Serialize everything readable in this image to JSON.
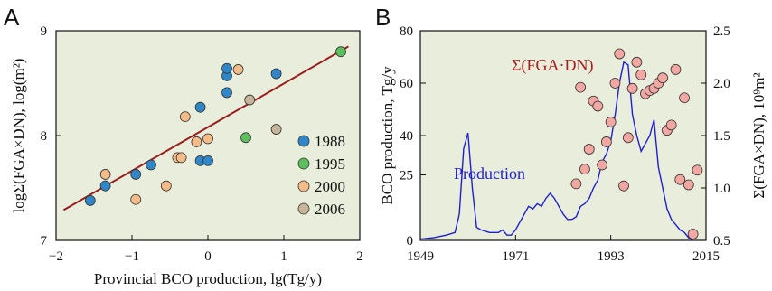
{
  "chart_data": [
    {
      "panel": "A",
      "type": "scatter",
      "xlabel": "Provincial BCO production, lg(Tg/y)",
      "ylabel": "logΣ(FGA×DN), log(m²)",
      "xlim": [
        -2,
        2
      ],
      "ylim": [
        7,
        9
      ],
      "xticks": [
        -2,
        -1,
        0,
        1,
        2
      ],
      "yticks": [
        7,
        8,
        9
      ],
      "xtick_labels": [
        "−2",
        "−1",
        "0",
        "1",
        "2"
      ],
      "ytick_labels": [
        "7",
        "8",
        "9"
      ],
      "background": "#e8eedb",
      "legend_position": "bottom-right",
      "fit_line": {
        "x": [
          -1.9,
          1.85
        ],
        "y": [
          7.29,
          8.85
        ],
        "color": "#9b1c1c"
      },
      "series": [
        {
          "name": "1988",
          "color": "#2f86c8",
          "points": [
            [
              -1.55,
              7.38
            ],
            [
              -1.35,
              7.52
            ],
            [
              -0.95,
              7.63
            ],
            [
              -0.75,
              7.72
            ],
            [
              -0.1,
              7.76
            ],
            [
              0.0,
              7.76
            ],
            [
              -0.1,
              8.27
            ],
            [
              0.25,
              8.41
            ],
            [
              0.25,
              8.57
            ],
            [
              0.25,
              8.64
            ],
            [
              0.9,
              8.59
            ]
          ]
        },
        {
          "name": "1995",
          "color": "#5cbf5c",
          "points": [
            [
              0.5,
              7.98
            ],
            [
              1.75,
              8.8
            ]
          ]
        },
        {
          "name": "2000",
          "color": "#f5bb88",
          "points": [
            [
              -1.35,
              7.63
            ],
            [
              -0.95,
              7.39
            ],
            [
              -0.55,
              7.52
            ],
            [
              -0.4,
              7.79
            ],
            [
              -0.35,
              7.79
            ],
            [
              -0.15,
              7.94
            ],
            [
              0.0,
              7.97
            ],
            [
              -0.3,
              8.18
            ],
            [
              0.4,
              8.63
            ]
          ]
        },
        {
          "name": "2006",
          "color": "#c8b49a",
          "points": [
            [
              0.55,
              8.34
            ],
            [
              0.9,
              8.06
            ]
          ]
        }
      ]
    },
    {
      "panel": "B",
      "type": "line",
      "xlim": [
        1949,
        2015
      ],
      "xticks": [
        1949,
        1971,
        1993,
        2015
      ],
      "ylabel_left": "BCO production, Tg/y",
      "ylim_left": [
        0,
        80
      ],
      "yticks_left": [
        0,
        25,
        40,
        60,
        80
      ],
      "ylabel_right": "Σ(FGA×DN), 10⁹m²",
      "ylim_right": [
        0.5,
        2.5
      ],
      "yticks_right": [
        0.5,
        1.0,
        1.5,
        2.0,
        2.5
      ],
      "ytick_labels_right": [
        "0.5",
        "1.0",
        "1.5",
        "2.0",
        "2.5"
      ],
      "background": "#e8eedb",
      "series": [
        {
          "name": "Production",
          "color": "#1f1fd0",
          "axis": "left",
          "x": [
            1949,
            1952,
            1955,
            1957,
            1958,
            1959,
            1960,
            1961,
            1962,
            1963,
            1965,
            1967,
            1968,
            1969,
            1970,
            1971,
            1972,
            1973,
            1974,
            1975,
            1976,
            1977,
            1978,
            1979,
            1980,
            1981,
            1982,
            1983,
            1984,
            1985,
            1986,
            1987,
            1988,
            1989,
            1990,
            1991,
            1992,
            1993,
            1994,
            1995,
            1996,
            1997,
            1998,
            1999,
            2000,
            2001,
            2002,
            2003,
            2004,
            2005,
            2006,
            2007,
            2008,
            2009,
            2010,
            2011,
            2012
          ],
          "y": [
            0.5,
            1,
            2,
            3,
            10,
            35,
            41,
            20,
            5,
            4,
            3,
            3,
            4,
            2,
            2,
            4,
            7,
            10,
            13,
            12,
            14,
            13,
            16,
            18,
            16,
            13,
            10,
            8,
            8,
            9,
            13,
            14,
            16,
            20,
            23,
            30,
            33,
            38,
            48,
            60,
            68,
            67,
            48,
            40,
            34,
            37,
            40,
            46,
            28,
            20,
            12,
            8,
            6,
            4,
            3,
            1,
            0
          ]
        },
        {
          "name": "Σ(FGA·DN)",
          "color": "#b03030",
          "marker_fill": "#f2a7a3",
          "axis": "right",
          "x": [
            1985,
            1986,
            1987,
            1988,
            1989,
            1990,
            1991,
            1992,
            1993,
            1994,
            1995,
            1996,
            1997,
            1998,
            1999,
            2000,
            2001,
            2002,
            2003,
            2004,
            2005,
            2006,
            2007,
            2008,
            2009,
            2010,
            2011,
            2012,
            2013
          ],
          "y": [
            1.04,
            1.96,
            1.18,
            1.37,
            1.83,
            1.78,
            1.22,
            1.44,
            1.63,
            2.0,
            2.28,
            1.02,
            1.48,
            1.95,
            2.2,
            2.08,
            1.9,
            1.93,
            1.95,
            2.0,
            2.05,
            1.55,
            1.6,
            2.13,
            1.08,
            1.86,
            1.03,
            0.56,
            1.17
          ]
        }
      ]
    }
  ]
}
